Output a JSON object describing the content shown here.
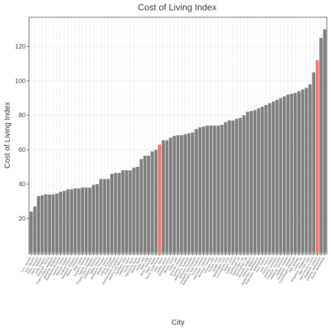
{
  "chart_data": {
    "type": "bar",
    "title": "Cost of Living Index",
    "xlabel": "City",
    "ylabel": "Cost of Living Index",
    "ylim": [
      -0.5,
      137
    ],
    "yticks": [
      20,
      40,
      60,
      80,
      100,
      120
    ],
    "grid": true,
    "legend": "none",
    "colors": {
      "bar": "#7f7f7f",
      "highlight": "#f8766d",
      "grid": "#ebebeb",
      "panel_border": "#333333"
    },
    "categories": [
      "Lviv, Ukraine",
      "Kyiv, Ukraine",
      "Tbilisi, Georgia",
      "Hanoi, Vietnam",
      "Sofia, Bulgaria",
      "Belgrade, Serbia",
      "Kuala Lumpur, Malaysia",
      "Bangkok, Thailand",
      "Bucharest, Romania",
      "Istanbul, Turkey",
      "Warsaw, Poland",
      "Krakow, Poland",
      "Budapest, Hungary",
      "Vilnius, Lithuania",
      "Riga, Latvia",
      "Sarajevo, Bosnia",
      "Zagreb, Croatia",
      "Prague, Czech Republic",
      "Ljubljana, Slovenia",
      "Tallinn, Estonia",
      "Bratislava, Slovakia",
      "Athens, Greece",
      "Lisbon, Portugal",
      "Porto, Portugal",
      "Buenos Aires, Argentina",
      "Mexico City, Mexico",
      "Santiago, Chile",
      "Valencia, Spain",
      "Seville, Spain",
      "Barcelona, Spain",
      "Madrid, Spain",
      "Rome, Italy",
      "Milan, Italy",
      "Berlin, Germany",
      "Taipei, Taiwan",
      "Seoul, South Korea",
      "Tokyo, Japan",
      "Osaka, Japan",
      "Shanghai, China",
      "Beijing, China",
      "Dubai, UAE",
      "Moscow, Russia",
      "Sydney, Australia",
      "Melbourne, Australia",
      "Brisbane, Australia",
      "Auckland, New Zealand",
      "Wellington, New Zealand",
      "Toronto, Canada",
      "Vancouver, Canada",
      "Montreal, Canada",
      "Chicago, USA",
      "Boston, USA",
      "Seattle, USA",
      "Washington, USA",
      "Los Angeles, USA",
      "Miami, USA",
      "Dublin, Ireland",
      "Edinburgh, UK",
      "Manchester, UK",
      "Birmingham, UK",
      "Brussels, Belgium",
      "Antwerp, Belgium",
      "Amsterdam, Netherlands",
      "Rotterdam, Netherlands",
      "Paris, France",
      "Lyon, France",
      "Vienna, Austria",
      "Munich, Germany",
      "Frankfurt, Germany",
      "Hamburg, Germany",
      "Helsinki, Finland",
      "Stockholm, Sweden",
      "Copenhagen, Denmark",
      "Oslo, Norway",
      "London, UK",
      "Singapore, Singapore",
      "New York, USA",
      "San Francisco, USA",
      "Reykjavik, Iceland",
      "Geneva, Switzerland",
      "Zurich, Switzerland"
    ],
    "values": [
      24,
      27,
      33,
      33.5,
      34,
      34,
      34,
      34.5,
      35.5,
      36,
      37,
      37,
      37.5,
      37.5,
      38,
      38,
      38,
      39.5,
      40,
      43,
      43,
      43,
      46,
      46.5,
      46.5,
      48,
      48,
      48,
      49.5,
      50,
      54.5,
      56.5,
      56.5,
      59,
      60,
      63,
      65.5,
      65.5,
      67,
      68,
      68.5,
      68.5,
      69,
      69.5,
      70,
      72,
      73,
      73.5,
      74,
      74,
      74,
      74,
      74.5,
      76,
      77,
      77,
      78,
      78.5,
      80,
      82,
      82.5,
      83,
      84,
      85,
      86,
      87,
      88,
      89,
      90,
      91,
      92,
      92.5,
      93,
      94,
      95,
      96,
      98,
      105,
      112,
      125,
      130
    ],
    "highlight_indices": [
      35,
      78
    ]
  }
}
